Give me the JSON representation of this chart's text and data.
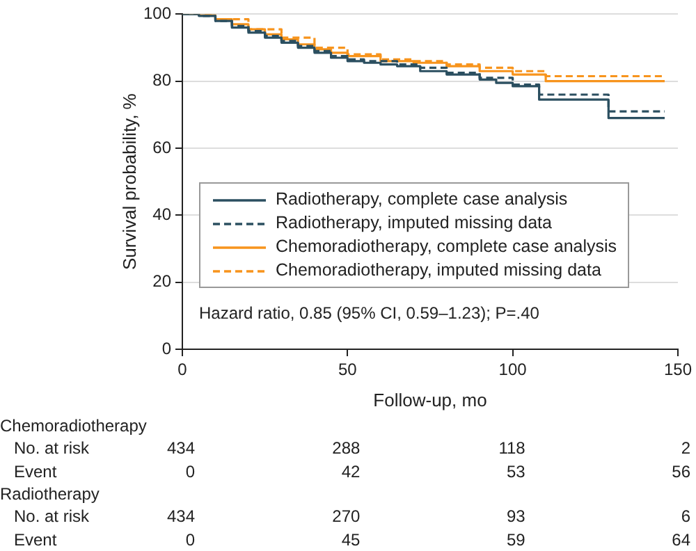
{
  "chart_data": {
    "type": "step",
    "xlabel": "Follow-up, mo",
    "ylabel": "Survival probability, %",
    "xlim": [
      0,
      150
    ],
    "xticks": [
      0,
      50,
      100,
      150
    ],
    "ylim": [
      0,
      100
    ],
    "yticks": [
      0,
      20,
      40,
      60,
      80,
      100
    ],
    "grid": "y",
    "legend": "bottom left",
    "marker": "none",
    "series": [
      {
        "name": "Radiotherapy, complete case analysis",
        "color": "#2b4f60",
        "line_style": "solid",
        "x": [
          0,
          5,
          10,
          15,
          20,
          25,
          30,
          35,
          40,
          45,
          50,
          55,
          60,
          65,
          72,
          80,
          90,
          95,
          100,
          108,
          129,
          146
        ],
        "values": [
          100,
          99.5,
          98,
          96,
          94.5,
          93,
          91.5,
          90,
          88.5,
          87,
          86,
          85.5,
          85,
          84.5,
          83,
          82,
          80.5,
          79.5,
          78.5,
          74.5,
          69,
          69
        ]
      },
      {
        "name": "Radiotherapy, imputed missing data",
        "color": "#2b4f60",
        "line_style": "dashed",
        "x": [
          0,
          5,
          10,
          15,
          20,
          25,
          30,
          35,
          40,
          45,
          50,
          55,
          65,
          72,
          80,
          90,
          100,
          108,
          129,
          146
        ],
        "values": [
          100,
          99.5,
          98,
          96.5,
          95,
          93.5,
          92,
          90.5,
          89,
          87.5,
          86.5,
          86,
          85,
          84,
          82.5,
          81,
          79,
          76,
          71,
          71
        ]
      },
      {
        "name": "Chemoradiotherapy, complete case analysis",
        "color": "#f7941d",
        "line_style": "solid",
        "x": [
          0,
          5,
          10,
          15,
          20,
          25,
          30,
          35,
          40,
          45,
          50,
          60,
          70,
          80,
          90,
          100,
          110,
          146
        ],
        "values": [
          100,
          99.7,
          98.5,
          97,
          95.5,
          94,
          92.5,
          91,
          89.5,
          88.5,
          87.5,
          86,
          85.5,
          84.5,
          83,
          82,
          80,
          80
        ]
      },
      {
        "name": "Chemoradiotherapy, imputed missing data",
        "color": "#f7941d",
        "line_style": "dashed",
        "x": [
          0,
          10,
          20,
          30,
          40,
          50,
          60,
          70,
          80,
          90,
          100,
          110,
          146
        ],
        "values": [
          100,
          98.5,
          95.5,
          93,
          90,
          88,
          86.5,
          86,
          85,
          84,
          83,
          81.5,
          81.5
        ]
      }
    ],
    "annotations": [
      "Hazard ratio, 0.85 (95% CI, 0.59–1.23); P=.40",
      "Chemoradiotherapy",
      "No. at risk",
      "434",
      "288",
      "118",
      "2",
      "Event",
      "0",
      "42",
      "53",
      "56",
      "Radiotherapy",
      "No. at risk",
      "434",
      "270",
      "93",
      "6",
      "Event",
      "0",
      "45",
      "59",
      "64"
    ]
  }
}
